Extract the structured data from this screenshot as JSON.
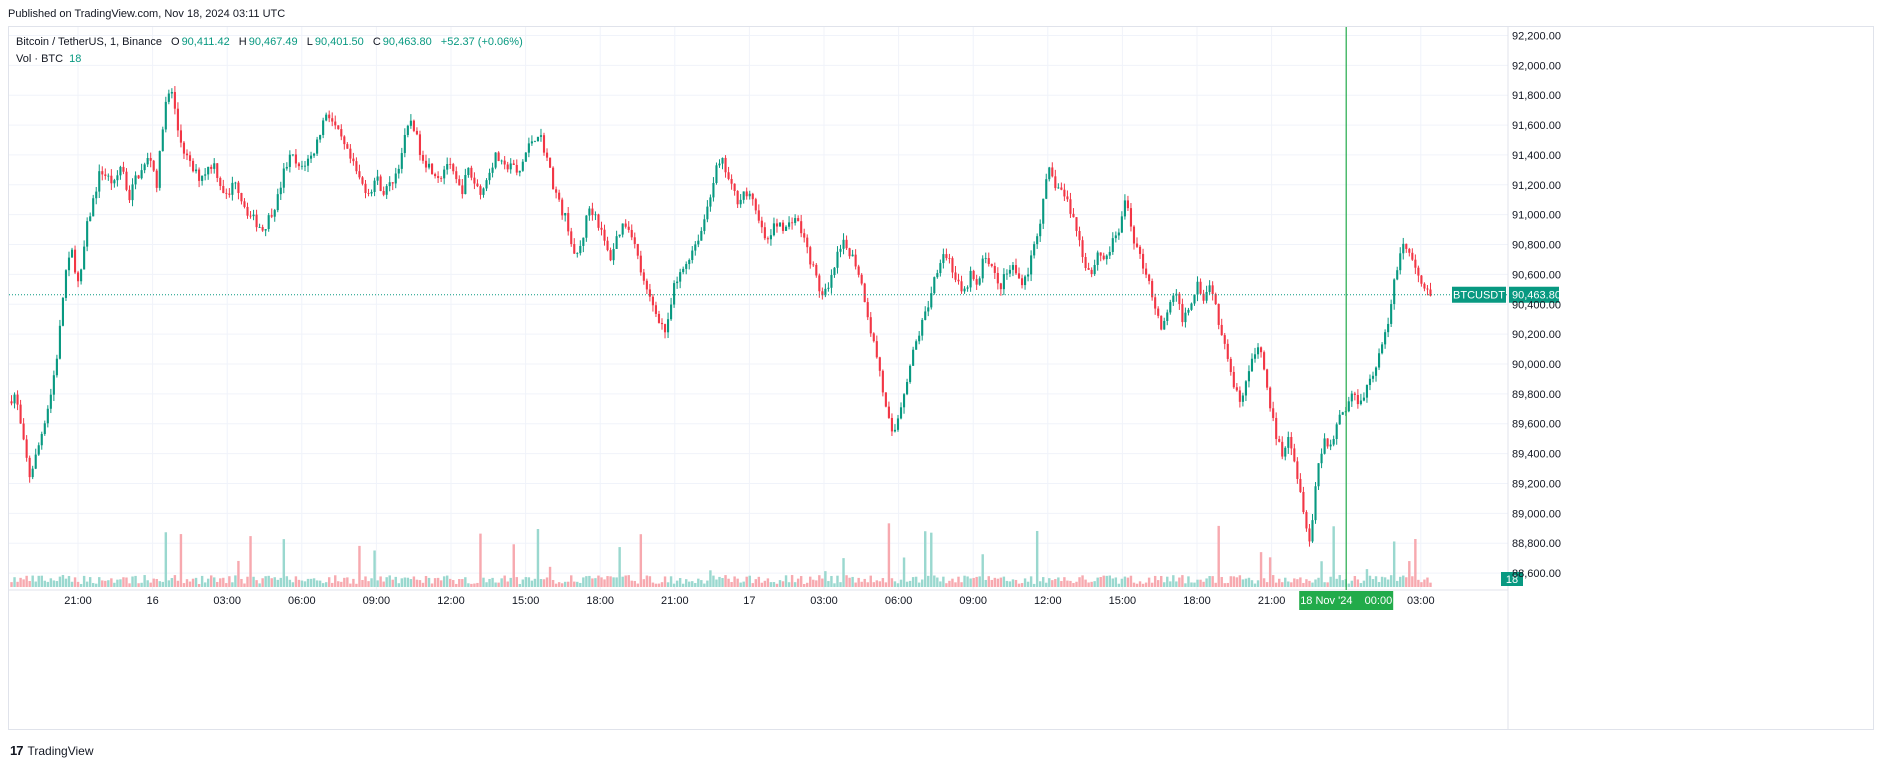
{
  "header": {
    "published": "Published on TradingView.com, Nov 18, 2024 03:11 UTC"
  },
  "legend": {
    "symbol": "Bitcoin / TetherUS, 1, Binance",
    "open_label": "O",
    "open": "90,411.42",
    "high_label": "H",
    "high": "90,467.49",
    "low_label": "L",
    "low": "90,401.50",
    "close_label": "C",
    "close": "90,463.80",
    "change": "+52.37 (+0.06%)",
    "volume_label": "Vol · BTC",
    "volume_value": "18"
  },
  "footer": {
    "logo": "17",
    "brand": "TradingView"
  },
  "colors": {
    "up": "#089981",
    "down": "#f23645",
    "vol_up": "#9ad8cf",
    "vol_down": "#f7a9af",
    "grid": "#f0f3fa",
    "crosshair": "#22ab4a"
  },
  "chart_data": {
    "type": "candlestick",
    "symbol_tag": "BTCUSDT",
    "last_price": 90463.8,
    "last_price_label": "90,463.80",
    "volume_tag": "18",
    "crosshair_label": "18 Nov '24    00:00",
    "y_ticks": [
      "92,200.00",
      "92,000.00",
      "91,800.00",
      "91,600.00",
      "91,400.00",
      "91,200.00",
      "91,000.00",
      "90,800.00",
      "90,600.00",
      "90,400.00",
      "90,200.00",
      "90,000.00",
      "89,800.00",
      "89,600.00",
      "89,400.00",
      "89,200.00",
      "89,000.00",
      "88,800.00",
      "88,600.00"
    ],
    "y_tick_values": [
      92200,
      92000,
      91800,
      91600,
      91400,
      91200,
      91000,
      90800,
      90600,
      90400,
      90200,
      90000,
      89800,
      89600,
      89400,
      89200,
      89000,
      88800,
      88600
    ],
    "x_ticks": [
      "21:00",
      "16",
      "03:00",
      "06:00",
      "09:00",
      "12:00",
      "15:00",
      "18:00",
      "21:00",
      "17",
      "03:00",
      "06:00",
      "09:00",
      "12:00",
      "15:00",
      "18:00",
      "21:00",
      "00:00",
      "03:00"
    ],
    "ylim": [
      88500,
      92250
    ],
    "price_path": [
      [
        0,
        89750
      ],
      [
        1,
        89800
      ],
      [
        2,
        89500
      ],
      [
        3,
        89250
      ],
      [
        4,
        89400
      ],
      [
        5,
        89600
      ],
      [
        6,
        89800
      ],
      [
        7,
        90100
      ],
      [
        8,
        90600
      ],
      [
        9,
        90750
      ],
      [
        10,
        90500
      ],
      [
        11,
        90900
      ],
      [
        12,
        91100
      ],
      [
        13,
        91300
      ],
      [
        14,
        91250
      ],
      [
        15,
        91200
      ],
      [
        16,
        91350
      ],
      [
        17,
        91100
      ],
      [
        18,
        91250
      ],
      [
        19,
        91300
      ],
      [
        20,
        91400
      ],
      [
        21,
        91200
      ],
      [
        22,
        91700
      ],
      [
        23,
        91850
      ],
      [
        24,
        91550
      ],
      [
        25,
        91400
      ],
      [
        26,
        91300
      ],
      [
        27,
        91250
      ],
      [
        28,
        91300
      ],
      [
        29,
        91350
      ],
      [
        30,
        91200
      ],
      [
        31,
        91100
      ],
      [
        32,
        91250
      ],
      [
        33,
        91100
      ],
      [
        34,
        91000
      ],
      [
        35,
        90950
      ],
      [
        36,
        90900
      ],
      [
        37,
        91000
      ],
      [
        38,
        91100
      ],
      [
        39,
        91300
      ],
      [
        40,
        91400
      ],
      [
        41,
        91300
      ],
      [
        42,
        91350
      ],
      [
        43,
        91400
      ],
      [
        44,
        91550
      ],
      [
        45,
        91700
      ],
      [
        46,
        91600
      ],
      [
        47,
        91500
      ],
      [
        48,
        91400
      ],
      [
        49,
        91300
      ],
      [
        50,
        91200
      ],
      [
        51,
        91150
      ],
      [
        52,
        91250
      ],
      [
        53,
        91150
      ],
      [
        54,
        91200
      ],
      [
        55,
        91300
      ],
      [
        56,
        91500
      ],
      [
        57,
        91650
      ],
      [
        58,
        91450
      ],
      [
        59,
        91350
      ],
      [
        60,
        91300
      ],
      [
        61,
        91250
      ],
      [
        62,
        91350
      ],
      [
        63,
        91250
      ],
      [
        64,
        91150
      ],
      [
        65,
        91300
      ],
      [
        66,
        91200
      ],
      [
        67,
        91150
      ],
      [
        68,
        91300
      ],
      [
        69,
        91400
      ],
      [
        70,
        91300
      ],
      [
        71,
        91350
      ],
      [
        72,
        91250
      ],
      [
        73,
        91400
      ],
      [
        74,
        91500
      ],
      [
        75,
        91550
      ],
      [
        76,
        91400
      ],
      [
        77,
        91200
      ],
      [
        78,
        91050
      ],
      [
        79,
        90950
      ],
      [
        80,
        90700
      ],
      [
        81,
        90800
      ],
      [
        82,
        91050
      ],
      [
        83,
        91000
      ],
      [
        84,
        90850
      ],
      [
        85,
        90700
      ],
      [
        86,
        90850
      ],
      [
        87,
        90950
      ],
      [
        88,
        90900
      ],
      [
        89,
        90700
      ],
      [
        90,
        90500
      ],
      [
        91,
        90400
      ],
      [
        92,
        90300
      ],
      [
        93,
        90200
      ],
      [
        94,
        90500
      ],
      [
        95,
        90600
      ],
      [
        96,
        90700
      ],
      [
        97,
        90800
      ],
      [
        98,
        90900
      ],
      [
        99,
        91100
      ],
      [
        100,
        91300
      ],
      [
        101,
        91350
      ],
      [
        102,
        91200
      ],
      [
        103,
        91100
      ],
      [
        104,
        91150
      ],
      [
        105,
        91100
      ],
      [
        106,
        91000
      ],
      [
        107,
        90800
      ],
      [
        108,
        90900
      ],
      [
        109,
        90950
      ],
      [
        110,
        90900
      ],
      [
        111,
        91000
      ],
      [
        112,
        90900
      ],
      [
        113,
        90750
      ],
      [
        114,
        90600
      ],
      [
        115,
        90450
      ],
      [
        116,
        90500
      ],
      [
        117,
        90700
      ],
      [
        118,
        90800
      ],
      [
        119,
        90750
      ],
      [
        120,
        90650
      ],
      [
        121,
        90450
      ],
      [
        122,
        90200
      ],
      [
        123,
        90000
      ],
      [
        124,
        89700
      ],
      [
        125,
        89500
      ],
      [
        126,
        89700
      ],
      [
        127,
        89900
      ],
      [
        128,
        90100
      ],
      [
        129,
        90250
      ],
      [
        130,
        90400
      ],
      [
        131,
        90600
      ],
      [
        132,
        90750
      ],
      [
        133,
        90700
      ],
      [
        134,
        90550
      ],
      [
        135,
        90450
      ],
      [
        136,
        90600
      ],
      [
        137,
        90500
      ],
      [
        138,
        90750
      ],
      [
        139,
        90650
      ],
      [
        140,
        90500
      ],
      [
        141,
        90600
      ],
      [
        142,
        90650
      ],
      [
        143,
        90550
      ],
      [
        144,
        90600
      ],
      [
        145,
        90800
      ],
      [
        146,
        91000
      ],
      [
        147,
        91300
      ],
      [
        148,
        91200
      ],
      [
        149,
        91150
      ],
      [
        150,
        91050
      ],
      [
        151,
        90900
      ],
      [
        152,
        90700
      ],
      [
        153,
        90600
      ],
      [
        154,
        90750
      ],
      [
        155,
        90700
      ],
      [
        156,
        90800
      ],
      [
        157,
        90900
      ],
      [
        158,
        91100
      ],
      [
        159,
        90850
      ],
      [
        160,
        90700
      ],
      [
        161,
        90600
      ],
      [
        162,
        90400
      ],
      [
        163,
        90200
      ],
      [
        164,
        90400
      ],
      [
        165,
        90450
      ],
      [
        166,
        90300
      ],
      [
        167,
        90400
      ],
      [
        168,
        90550
      ],
      [
        169,
        90450
      ],
      [
        170,
        90550
      ],
      [
        171,
        90300
      ],
      [
        172,
        90150
      ],
      [
        173,
        89900
      ],
      [
        174,
        89750
      ],
      [
        175,
        89900
      ],
      [
        176,
        90050
      ],
      [
        177,
        90100
      ],
      [
        178,
        89800
      ],
      [
        179,
        89550
      ],
      [
        180,
        89400
      ],
      [
        181,
        89550
      ],
      [
        182,
        89300
      ],
      [
        183,
        89050
      ],
      [
        184,
        88800
      ],
      [
        185,
        89300
      ],
      [
        186,
        89500
      ],
      [
        187,
        89450
      ],
      [
        188,
        89650
      ],
      [
        189,
        89700
      ],
      [
        190,
        89800
      ],
      [
        191,
        89750
      ],
      [
        192,
        89850
      ],
      [
        193,
        89950
      ],
      [
        194,
        90100
      ],
      [
        195,
        90250
      ],
      [
        196,
        90600
      ],
      [
        197,
        90800
      ],
      [
        198,
        90750
      ],
      [
        199,
        90600
      ],
      [
        200,
        90500
      ],
      [
        201,
        90450
      ]
    ]
  }
}
